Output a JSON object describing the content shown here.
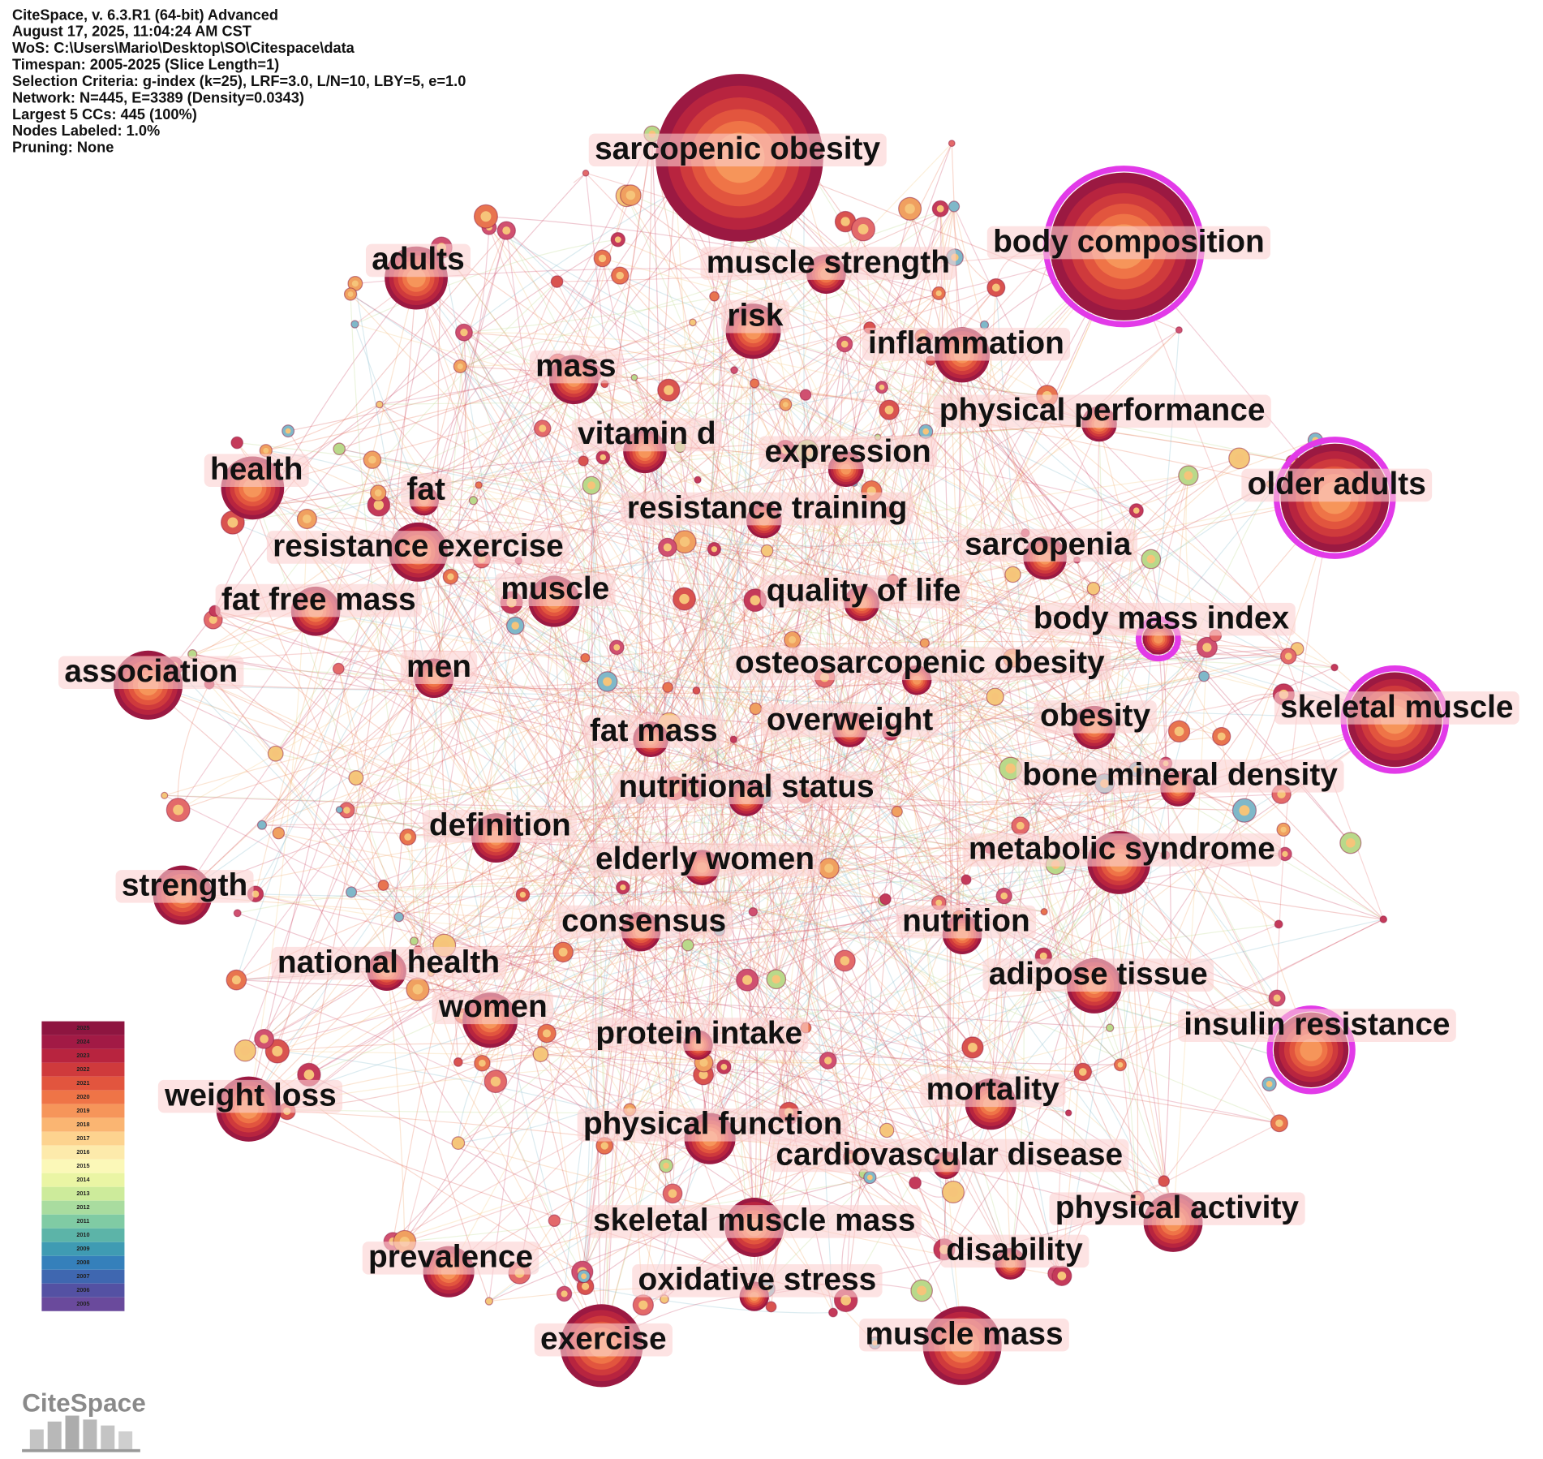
{
  "header": {
    "lines": [
      "CiteSpace, v. 6.3.R1 (64-bit) Advanced",
      "August 17, 2025, 11:04:24 AM CST",
      "WoS: C:\\Users\\Mario\\Desktop\\SO\\Citespace\\data",
      "Timespan: 2005-2025 (Slice Length=1)",
      "Selection Criteria: g-index (k=25), LRF=3.0, L/N=10, LBY=5, e=1.0",
      "Network: N=445, E=3389 (Density=0.0343)",
      "Largest 5 CCs: 445 (100%)",
      "Nodes Labeled: 1.0%",
      "Pruning: None"
    ]
  },
  "nodes": [
    {
      "label": "sarcopenic obesity"
    },
    {
      "label": "body composition"
    },
    {
      "label": "muscle strength"
    },
    {
      "label": "adults"
    },
    {
      "label": "risk"
    },
    {
      "label": "inflammation"
    },
    {
      "label": "mass"
    },
    {
      "label": "physical performance"
    },
    {
      "label": "vitamin d"
    },
    {
      "label": "expression"
    },
    {
      "label": "health"
    },
    {
      "label": "older adults"
    },
    {
      "label": "fat"
    },
    {
      "label": "resistance training"
    },
    {
      "label": "resistance exercise"
    },
    {
      "label": "sarcopenia"
    },
    {
      "label": "fat free mass"
    },
    {
      "label": "muscle"
    },
    {
      "label": "quality of life"
    },
    {
      "label": "body mass index"
    },
    {
      "label": "association"
    },
    {
      "label": "men"
    },
    {
      "label": "osteosarcopenic obesity"
    },
    {
      "label": "fat mass"
    },
    {
      "label": "overweight"
    },
    {
      "label": "obesity"
    },
    {
      "label": "skeletal muscle"
    },
    {
      "label": "bone mineral density"
    },
    {
      "label": "nutritional status"
    },
    {
      "label": "definition"
    },
    {
      "label": "metabolic syndrome"
    },
    {
      "label": "elderly women"
    },
    {
      "label": "strength"
    },
    {
      "label": "consensus"
    },
    {
      "label": "nutrition"
    },
    {
      "label": "national health"
    },
    {
      "label": "adipose tissue"
    },
    {
      "label": "women"
    },
    {
      "label": "insulin resistance"
    },
    {
      "label": "protein intake"
    },
    {
      "label": "weight loss"
    },
    {
      "label": "mortality"
    },
    {
      "label": "physical function"
    },
    {
      "label": "cardiovascular disease"
    },
    {
      "label": "physical activity"
    },
    {
      "label": "skeletal muscle mass"
    },
    {
      "label": "disability"
    },
    {
      "label": "prevalence"
    },
    {
      "label": "oxidative stress"
    },
    {
      "label": "exercise"
    },
    {
      "label": "muscle mass"
    }
  ],
  "legend": [
    {
      "year": "2025",
      "color": "#8e1540"
    },
    {
      "year": "2024",
      "color": "#a21a45"
    },
    {
      "year": "2023",
      "color": "#b8243f"
    },
    {
      "year": "2022",
      "color": "#cf3a3c"
    },
    {
      "year": "2021",
      "color": "#e2553e"
    },
    {
      "year": "2020",
      "color": "#ef7447"
    },
    {
      "year": "2019",
      "color": "#f6955a"
    },
    {
      "year": "2018",
      "color": "#fab572"
    },
    {
      "year": "2017",
      "color": "#fdd38f"
    },
    {
      "year": "2016",
      "color": "#fdeaab"
    },
    {
      "year": "2015",
      "color": "#fbf8b8"
    },
    {
      "year": "2014",
      "color": "#eaf5a4"
    },
    {
      "year": "2013",
      "color": "#cdeb9b"
    },
    {
      "year": "2012",
      "color": "#a9dc9f"
    },
    {
      "year": "2011",
      "color": "#80cba4"
    },
    {
      "year": "2010",
      "color": "#5cb4a8"
    },
    {
      "year": "2009",
      "color": "#3f9bb3"
    },
    {
      "year": "2008",
      "color": "#3580bb"
    },
    {
      "year": "2007",
      "color": "#3f67b0"
    },
    {
      "year": "2006",
      "color": "#5451a3"
    },
    {
      "year": "2005",
      "color": "#6a4a9c"
    }
  ],
  "logo": "CiteSpace"
}
